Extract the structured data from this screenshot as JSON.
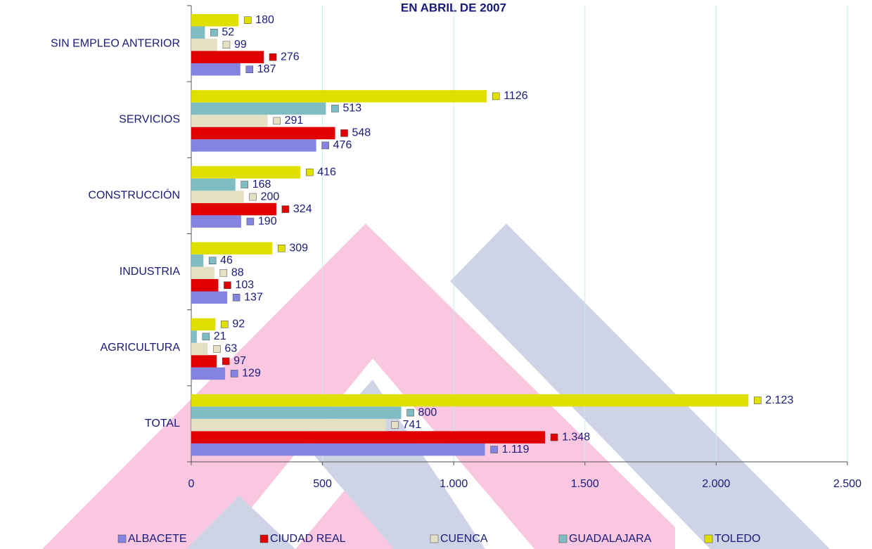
{
  "chart_data": {
    "type": "hbar",
    "title": "EN ABRIL DE 2007",
    "categories": [
      "SIN EMPLEO ANTERIOR",
      "SERVICIOS",
      "CONSTRUCCIÓN",
      "INDUSTRIA",
      "AGRICULTURA",
      "TOTAL"
    ],
    "series": [
      {
        "name": "ALBACETE",
        "color": "#8484e0",
        "values": [
          187,
          476,
          190,
          137,
          129,
          1119
        ],
        "value_labels": [
          "187",
          "476",
          "190",
          "137",
          "129",
          "1.119"
        ]
      },
      {
        "name": "CIUDAD REAL",
        "color": "#e00000",
        "values": [
          276,
          548,
          324,
          103,
          97,
          1348
        ],
        "value_labels": [
          "276",
          "548",
          "324",
          "103",
          "97",
          "1.348"
        ]
      },
      {
        "name": "CUENCA",
        "color": "#e4e0c4",
        "values": [
          99,
          291,
          200,
          88,
          63,
          741
        ],
        "value_labels": [
          "99",
          "291",
          "200",
          "88",
          "63",
          "741"
        ]
      },
      {
        "name": "GUADALAJARA",
        "color": "#80bcc4",
        "values": [
          52,
          513,
          168,
          46,
          21,
          800
        ],
        "value_labels": [
          "52",
          "513",
          "168",
          "46",
          "21",
          "800"
        ]
      },
      {
        "name": "TOLEDO",
        "color": "#e0e000",
        "values": [
          180,
          1126,
          416,
          309,
          92,
          2123
        ],
        "value_labels": [
          "180",
          "1126",
          "416",
          "309",
          "92",
          "2.123"
        ]
      }
    ],
    "xlim": [
      0,
      2500
    ],
    "xticks": [
      0,
      500,
      {
        "value": 1000,
        "label": "1.000"
      },
      {
        "value": 1500,
        "label": "1.500"
      },
      {
        "value": 2000,
        "label": "2.000"
      },
      {
        "value": 2500,
        "label": "2.500"
      }
    ],
    "grid": true,
    "legend": "bottom"
  }
}
